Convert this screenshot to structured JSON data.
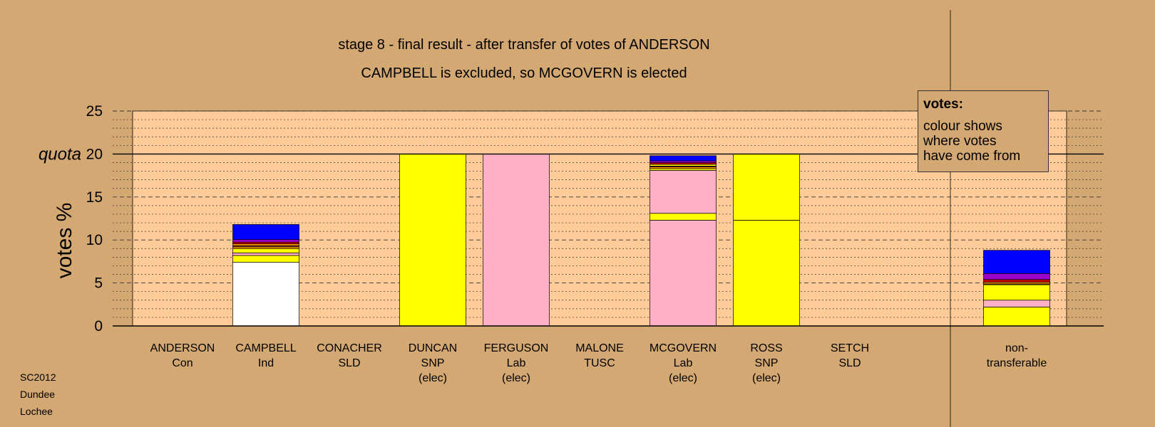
{
  "title_line1": "stage 8 - final result - after transfer of votes of ANDERSON",
  "title_line2": "CAMPBELL is excluded, so MCGOVERN is elected",
  "legend": {
    "title": "votes:",
    "lines": [
      "colour shows",
      "where votes",
      "have come from"
    ]
  },
  "footnote": [
    "SC2012",
    "Dundee",
    "Lochee"
  ],
  "chart_data": {
    "type": "bar",
    "stacked": true,
    "ylabel": "votes %",
    "ylim": [
      0,
      25
    ],
    "yticks": [
      "0",
      "5",
      "10",
      "15",
      "20",
      "25"
    ],
    "quota": {
      "value": 20,
      "label": "quota"
    },
    "grid": true,
    "colors": {
      "own": "#FFFFFF",
      "SNP": "#FFFF00",
      "Lab": "#FFB0C4",
      "Con": "#0000FF",
      "Ind": "#9900CC",
      "TUSC": "#CC0000",
      "SLD": "#FF9900",
      "other": "#8B4513"
    },
    "categories": [
      {
        "lines": [
          "ANDERSON",
          "Con"
        ],
        "segments": []
      },
      {
        "lines": [
          "CAMPBELL",
          "Ind"
        ],
        "segments": [
          {
            "from": "own",
            "value": 7.4
          },
          {
            "from": "SNP",
            "value": 0.8
          },
          {
            "from": "Lab",
            "value": 0.3
          },
          {
            "from": "SNP",
            "value": 0.5
          },
          {
            "from": "SLD",
            "value": 0.2
          },
          {
            "from": "other",
            "value": 0.15
          },
          {
            "from": "SLD",
            "value": 0.2
          },
          {
            "from": "TUSC",
            "value": 0.2
          },
          {
            "from": "Ind",
            "value": 0.3
          },
          {
            "from": "Con",
            "value": 1.75
          }
        ]
      },
      {
        "lines": [
          "CONACHER",
          "SLD"
        ],
        "segments": []
      },
      {
        "lines": [
          "DUNCAN",
          "SNP",
          "(elec)"
        ],
        "segments": [
          {
            "from": "SNP",
            "value": 20
          }
        ]
      },
      {
        "lines": [
          "FERGUSON",
          "Lab",
          "(elec)"
        ],
        "segments": [
          {
            "from": "Lab",
            "value": 20
          }
        ]
      },
      {
        "lines": [
          "MALONE",
          "TUSC"
        ],
        "segments": []
      },
      {
        "lines": [
          "MCGOVERN",
          "Lab",
          "(elec)"
        ],
        "segments": [
          {
            "from": "Lab",
            "value": 12.3
          },
          {
            "from": "SNP",
            "value": 0.8
          },
          {
            "from": "Lab",
            "value": 5.0
          },
          {
            "from": "SNP",
            "value": 0.2
          },
          {
            "from": "SLD",
            "value": 0.2
          },
          {
            "from": "other",
            "value": 0.1
          },
          {
            "from": "SNP",
            "value": 0.2
          },
          {
            "from": "TUSC",
            "value": 0.2
          },
          {
            "from": "Ind",
            "value": 0.2
          },
          {
            "from": "Con",
            "value": 0.6
          }
        ]
      },
      {
        "lines": [
          "ROSS",
          "SNP",
          "(elec)"
        ],
        "segments": [
          {
            "from": "SNP",
            "value": 12.3
          },
          {
            "from": "SNP",
            "value": 7.7
          }
        ]
      },
      {
        "lines": [
          "SETCH",
          "SLD"
        ],
        "segments": []
      },
      {
        "lines": [
          "non-",
          "transferable"
        ],
        "segments": [
          {
            "from": "SNP",
            "value": 2.2
          },
          {
            "from": "Lab",
            "value": 0.8
          },
          {
            "from": "SNP",
            "value": 1.8
          },
          {
            "from": "other",
            "value": 0.1
          },
          {
            "from": "SLD",
            "value": 0.2
          },
          {
            "from": "TUSC",
            "value": 0.3
          },
          {
            "from": "Ind",
            "value": 0.7
          },
          {
            "from": "Con",
            "value": 2.7
          }
        ]
      }
    ]
  }
}
